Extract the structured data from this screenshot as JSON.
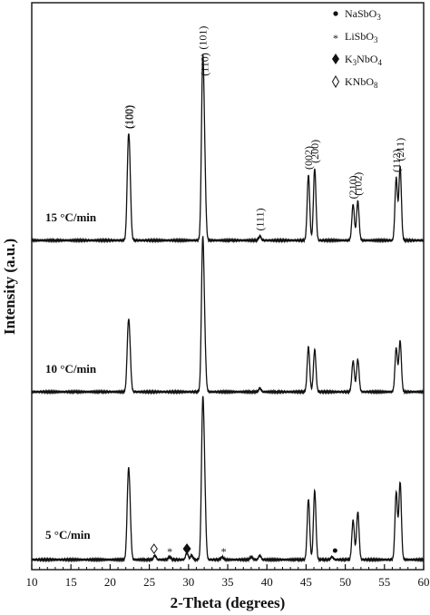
{
  "chart_data": {
    "type": "line",
    "xlabel": "2-Theta (degrees)",
    "ylabel": "Intensity (a.u.)",
    "xlim": [
      10,
      60
    ],
    "x_ticks": [
      10,
      15,
      20,
      25,
      30,
      35,
      40,
      45,
      50,
      55,
      60
    ],
    "legend": {
      "placement": "top-right",
      "entries": [
        {
          "symbol": "●",
          "label": "NaSbO",
          "sub": "3"
        },
        {
          "symbol": "*",
          "label": "LiSbO",
          "sub": "3"
        },
        {
          "symbol": "◆",
          "label": "K",
          "sub": "3",
          "label2": "NbO",
          "sub2": "4"
        },
        {
          "symbol": "◇",
          "label": "KNbO",
          "sub": "8"
        }
      ]
    },
    "series": [
      {
        "name": "15 °C/min",
        "peaks": [
          {
            "x": 22.3,
            "h": 0.46
          },
          {
            "x": 22.5,
            "h": 0.33
          },
          {
            "x": 31.8,
            "h": 1.0
          },
          {
            "x": 32.05,
            "h": 0.4
          },
          {
            "x": 39.1,
            "h": 0.025
          },
          {
            "x": 45.3,
            "h": 0.4
          },
          {
            "x": 46.1,
            "h": 0.44
          },
          {
            "x": 51.0,
            "h": 0.22
          },
          {
            "x": 51.6,
            "h": 0.24
          },
          {
            "x": 56.5,
            "h": 0.38
          },
          {
            "x": 57.0,
            "h": 0.45
          }
        ]
      },
      {
        "name": "10 °C/min",
        "peaks": [
          {
            "x": 22.3,
            "h": 0.38
          },
          {
            "x": 22.5,
            "h": 0.24
          },
          {
            "x": 31.8,
            "h": 1.0
          },
          {
            "x": 32.05,
            "h": 0.32
          },
          {
            "x": 39.1,
            "h": 0.025
          },
          {
            "x": 45.3,
            "h": 0.32
          },
          {
            "x": 46.1,
            "h": 0.3
          },
          {
            "x": 51.0,
            "h": 0.22
          },
          {
            "x": 51.6,
            "h": 0.23
          },
          {
            "x": 56.5,
            "h": 0.31
          },
          {
            "x": 57.0,
            "h": 0.36
          }
        ]
      },
      {
        "name": "5 °C/min",
        "peaks": [
          {
            "x": 22.3,
            "h": 0.48
          },
          {
            "x": 22.5,
            "h": 0.3
          },
          {
            "x": 25.7,
            "h": 0.03
          },
          {
            "x": 27.6,
            "h": 0.02
          },
          {
            "x": 29.8,
            "h": 0.05
          },
          {
            "x": 30.4,
            "h": 0.03
          },
          {
            "x": 31.8,
            "h": 1.0
          },
          {
            "x": 32.05,
            "h": 0.45
          },
          {
            "x": 34.3,
            "h": 0.02
          },
          {
            "x": 38.0,
            "h": 0.02
          },
          {
            "x": 39.1,
            "h": 0.03
          },
          {
            "x": 45.3,
            "h": 0.43
          },
          {
            "x": 46.1,
            "h": 0.49
          },
          {
            "x": 48.3,
            "h": 0.02
          },
          {
            "x": 51.0,
            "h": 0.28
          },
          {
            "x": 51.6,
            "h": 0.34
          },
          {
            "x": 56.5,
            "h": 0.48
          },
          {
            "x": 57.0,
            "h": 0.55
          }
        ],
        "markers": [
          {
            "x": 25.6,
            "symbol": "◇"
          },
          {
            "x": 27.6,
            "symbol": "*"
          },
          {
            "x": 29.8,
            "symbol": "◆"
          },
          {
            "x": 34.5,
            "symbol": "*"
          },
          {
            "x": 48.7,
            "symbol": "●"
          }
        ]
      }
    ],
    "peak_labels": [
      {
        "text": "(100)",
        "x": 22.3,
        "series": 0
      },
      {
        "text": "(100)",
        "x": 22.5,
        "series": 0
      },
      {
        "text": "(101)",
        "x": 31.8,
        "series": 0
      },
      {
        "text": "(110)",
        "x": 32.05,
        "series": 0
      },
      {
        "text": "(111)",
        "x": 39.1,
        "series": 0
      },
      {
        "text": "(002)",
        "x": 45.3,
        "series": 0
      },
      {
        "text": "(200)",
        "x": 46.1,
        "series": 0
      },
      {
        "text": "(210)",
        "x": 51.0,
        "series": 0
      },
      {
        "text": "(102)",
        "x": 51.6,
        "series": 0
      },
      {
        "text": "(112)",
        "x": 56.5,
        "series": 0
      },
      {
        "text": "(211)",
        "x": 57.0,
        "series": 0
      }
    ]
  }
}
